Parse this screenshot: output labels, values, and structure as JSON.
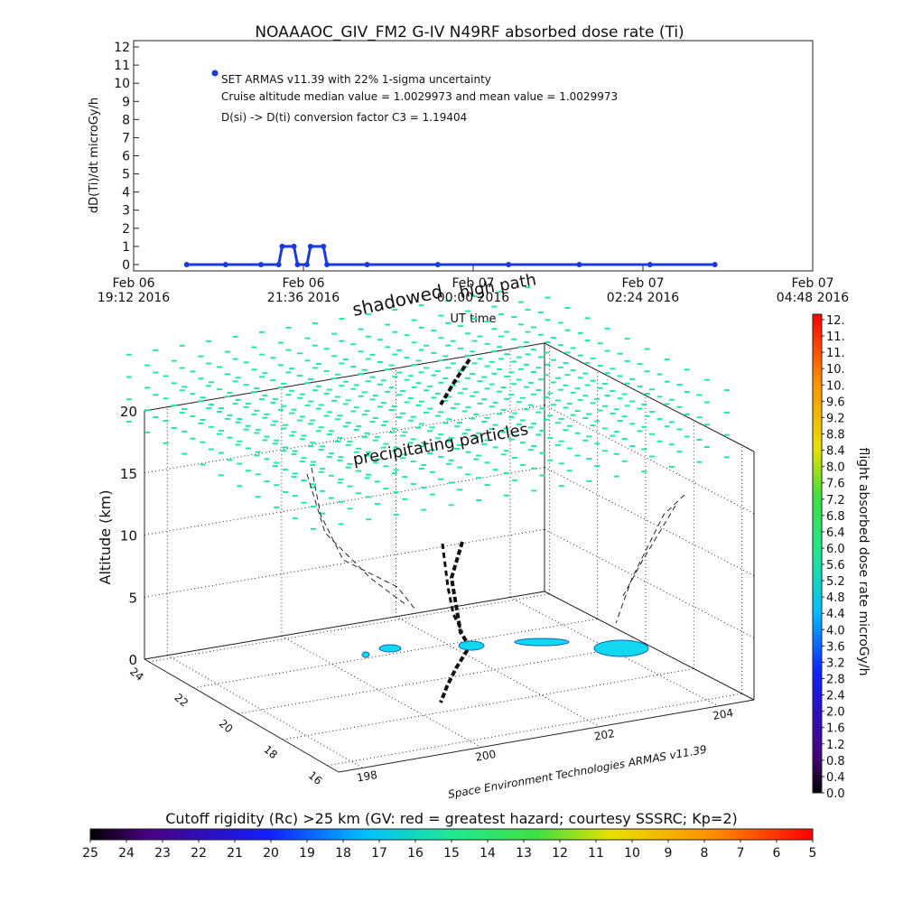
{
  "chart_data": [
    {
      "type": "line",
      "title": "NOAAAOC_GIV_FM2 G-IV    N49RF  absorbed dose rate (Ti)",
      "ylabel": "dD(Ti)/dt microGy/h",
      "xlabel": "UT time",
      "annotations": [
        "Cruise altitude median value = 1.0029973 and mean value = 1.0029973",
        "D(si) -> D(ti) conversion factor C3 = 1.19404"
      ],
      "xlim": [
        "2016-02-06T19:12",
        "2016-02-07T04:48"
      ],
      "xticks": [
        {
          "value": "2016-02-06T19:12",
          "label": "Feb 06\n19:12 2016"
        },
        {
          "value": "2016-02-06T21:36",
          "label": "Feb 06\n21:36 2016"
        },
        {
          "value": "2016-02-07T00:00",
          "label": "Feb 07\n00:00 2016"
        },
        {
          "value": "2016-02-07T02:24",
          "label": "Feb 07\n02:24 2016"
        },
        {
          "value": "2016-02-07T04:48",
          "label": "Feb 07\n04:48 2016"
        }
      ],
      "ylim": [
        -0.35,
        12.35
      ],
      "yticks": [
        0,
        1,
        2,
        3,
        4,
        5,
        6,
        7,
        8,
        9,
        10,
        11,
        12
      ],
      "series": [
        {
          "name": "SET ARMAS v11.39 with 22% 1-sigma uncertainty",
          "color": "#1a3ae0",
          "x": [
            "2016-02-06T19:57",
            "2016-02-06T20:30",
            "2016-02-06T21:00",
            "2016-02-06T21:15",
            "2016-02-06T21:18",
            "2016-02-06T21:28",
            "2016-02-06T21:31",
            "2016-02-06T21:39",
            "2016-02-06T21:42",
            "2016-02-06T21:53",
            "2016-02-06T21:56",
            "2016-02-06T22:30",
            "2016-02-06T23:30",
            "2016-02-07T00:30",
            "2016-02-07T01:30",
            "2016-02-07T02:30",
            "2016-02-07T03:25"
          ],
          "values": [
            0,
            0,
            0,
            0,
            1.0,
            1.0,
            0,
            0,
            1.0,
            1.0,
            0,
            0,
            0,
            0,
            0,
            0,
            0
          ]
        }
      ]
    },
    {
      "type": "surface3d",
      "zlabel": "Altitude (km)",
      "zlim": [
        0,
        20
      ],
      "zticks": [
        0,
        5,
        10,
        15,
        20
      ],
      "latlim": [
        24.2,
        15.5
      ],
      "latticks": [
        24,
        22,
        20,
        18,
        16
      ],
      "lonlim": [
        197.6,
        204.6
      ],
      "lonticks": [
        198,
        200,
        202,
        204
      ],
      "annotations": [
        "shadowed",
        "high path",
        "precipitating particles"
      ],
      "credit": "Space Environment Technologies ARMAS v11.39"
    },
    {
      "type": "colorbar",
      "orientation": "vertical",
      "label": "flight absorbed dose rate microGy/h",
      "lim": [
        0,
        11.6
      ],
      "ticks": [
        {
          "value": 0,
          "label": "0.0"
        },
        0.4,
        0.8,
        1.2,
        1.6,
        {
          "value": 2,
          "label": "2.0"
        },
        2.4,
        2.8,
        3.2,
        3.6,
        {
          "value": 4,
          "label": "4.0"
        },
        4.4,
        4.8,
        5.2,
        5.6,
        {
          "value": 6,
          "label": "6.0"
        },
        6.4,
        6.8,
        7.2,
        7.6,
        {
          "value": 8,
          "label": "8.0"
        },
        8.4,
        8.8,
        9.2,
        9.6,
        {
          "value": 10,
          "label": "10."
        },
        {
          "value": 10.4,
          "label": "10."
        },
        {
          "value": 10.8,
          "label": "11."
        },
        {
          "value": 11.2,
          "label": "11."
        },
        {
          "value": 11.6,
          "label": "12."
        }
      ]
    },
    {
      "type": "colorbar",
      "orientation": "horizontal",
      "title": "Cutoff rigidity (Rc) >25 km (GV: red = greatest hazard; courtesy SSSRC; Kp=2)",
      "lim": [
        25,
        5
      ],
      "ticks": [
        25,
        24,
        23,
        22,
        21,
        20,
        19,
        18,
        17,
        16,
        15,
        14,
        13,
        12,
        11,
        10,
        9,
        8,
        7,
        6,
        5
      ]
    }
  ]
}
